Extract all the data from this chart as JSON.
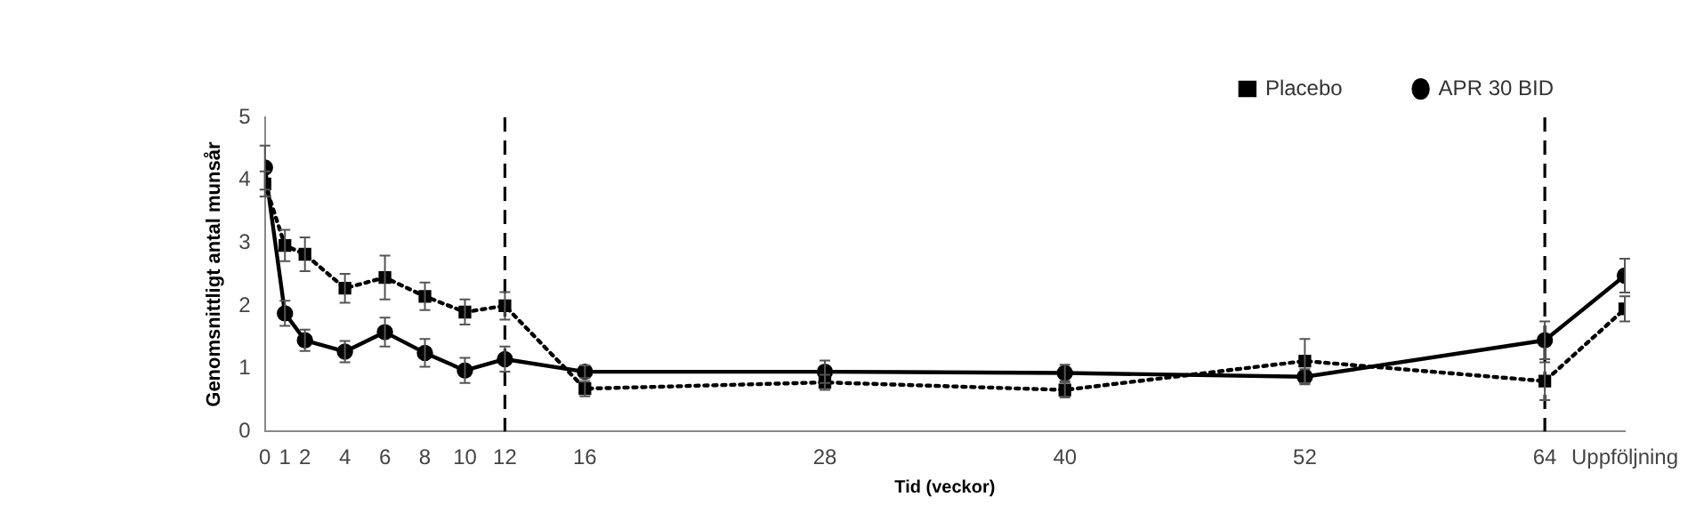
{
  "chart_data": {
    "type": "line",
    "xlabel": "Tid (veckor)",
    "ylabel": "Genomsnittligt antal munsår",
    "x": [
      0,
      1,
      2,
      4,
      6,
      8,
      10,
      12,
      16,
      28,
      40,
      52,
      64,
      68
    ],
    "xlim": [
      0,
      68
    ],
    "xticks": [
      0,
      1,
      2,
      4,
      6,
      8,
      10,
      12,
      16,
      28,
      40,
      52,
      64,
      {
        "value": 68,
        "label": "Uppföljning"
      }
    ],
    "ylim": [
      0,
      5
    ],
    "yticks": [
      0,
      1,
      2,
      3,
      4,
      5
    ],
    "grid": false,
    "legend": "top right",
    "series": [
      {
        "name": "Placebo",
        "color": "#000000",
        "marker": "square",
        "line_style": "dotted",
        "values": [
          3.94,
          2.96,
          2.82,
          2.28,
          2.45,
          2.15,
          1.9,
          2.0,
          0.68,
          0.78,
          0.66,
          1.12,
          0.8,
          1.95
        ],
        "errors": [
          0.2,
          0.25,
          0.27,
          0.23,
          0.35,
          0.22,
          0.2,
          0.22,
          0.12,
          0.12,
          0.12,
          0.35,
          0.3,
          0.2
        ]
      },
      {
        "name": "APR 30 BID",
        "color": "#000000",
        "marker": "circle",
        "line_style": "solid",
        "values": [
          4.2,
          1.88,
          1.45,
          1.27,
          1.58,
          1.25,
          0.97,
          1.15,
          0.95,
          0.95,
          0.93,
          0.87,
          1.45,
          2.48
        ],
        "errors": [
          0.35,
          0.2,
          0.17,
          0.17,
          0.23,
          0.22,
          0.2,
          0.2,
          0.1,
          0.18,
          0.13,
          0.12,
          0.3,
          0.27
        ]
      }
    ],
    "ref_lines": [
      {
        "axis": "x",
        "value": 12,
        "color": "#000000",
        "line_style": "dashed"
      },
      {
        "axis": "x",
        "value": 64,
        "color": "#000000",
        "line_style": "dashed"
      }
    ]
  }
}
